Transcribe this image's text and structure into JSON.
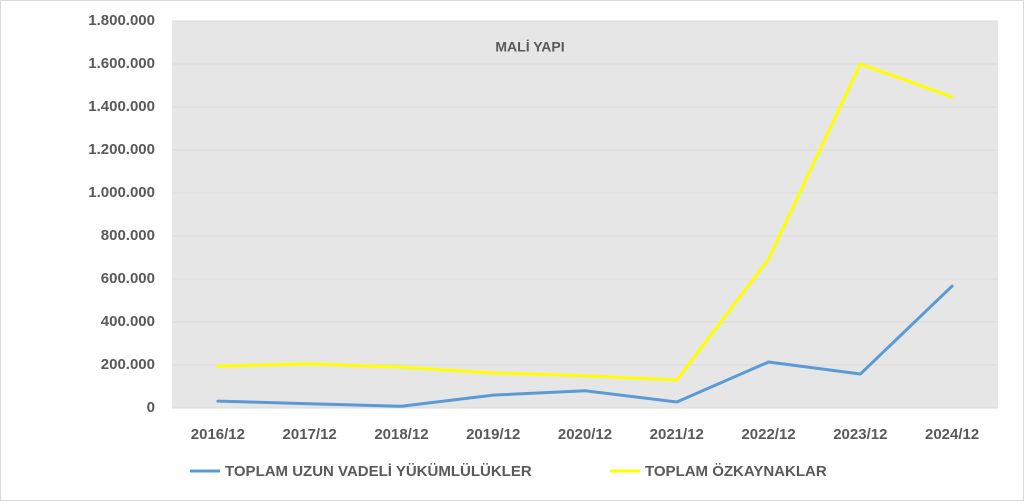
{
  "chart_data": {
    "type": "line",
    "title": "MALİ YAPI",
    "categories": [
      "2016/12",
      "2017/12",
      "2018/12",
      "2019/12",
      "2020/12",
      "2021/12",
      "2022/12",
      "2023/12",
      "2024/12"
    ],
    "series": [
      {
        "name": "TOPLAM UZUN VADELİ YÜKÜMLÜLÜKLER",
        "color": "#5b9bd5",
        "values": [
          32000,
          20000,
          8000,
          60000,
          80000,
          28000,
          214000,
          158000,
          567000
        ]
      },
      {
        "name": "TOPLAM ÖZKAYNAKLAR",
        "color": "#ffff00",
        "values": [
          195000,
          205000,
          190000,
          163000,
          150000,
          130000,
          693000,
          1600000,
          1447000
        ]
      }
    ],
    "ylim": [
      0,
      1800000
    ],
    "yticks": [
      0,
      {
        "value": 200000,
        "label": "200.000"
      },
      {
        "value": 400000,
        "label": "400.000"
      },
      {
        "value": 600000,
        "label": "600.000"
      },
      {
        "value": 800000,
        "label": "800.000"
      },
      {
        "value": 1000000,
        "label": "1.000.000"
      },
      {
        "value": 1200000,
        "label": "1.200.000"
      },
      {
        "value": 1400000,
        "label": "1.400.000"
      },
      {
        "value": 1600000,
        "label": "1.600.000"
      },
      {
        "value": 1800000,
        "label": "1.800.000"
      }
    ],
    "grid": true,
    "legend": "bottom"
  }
}
